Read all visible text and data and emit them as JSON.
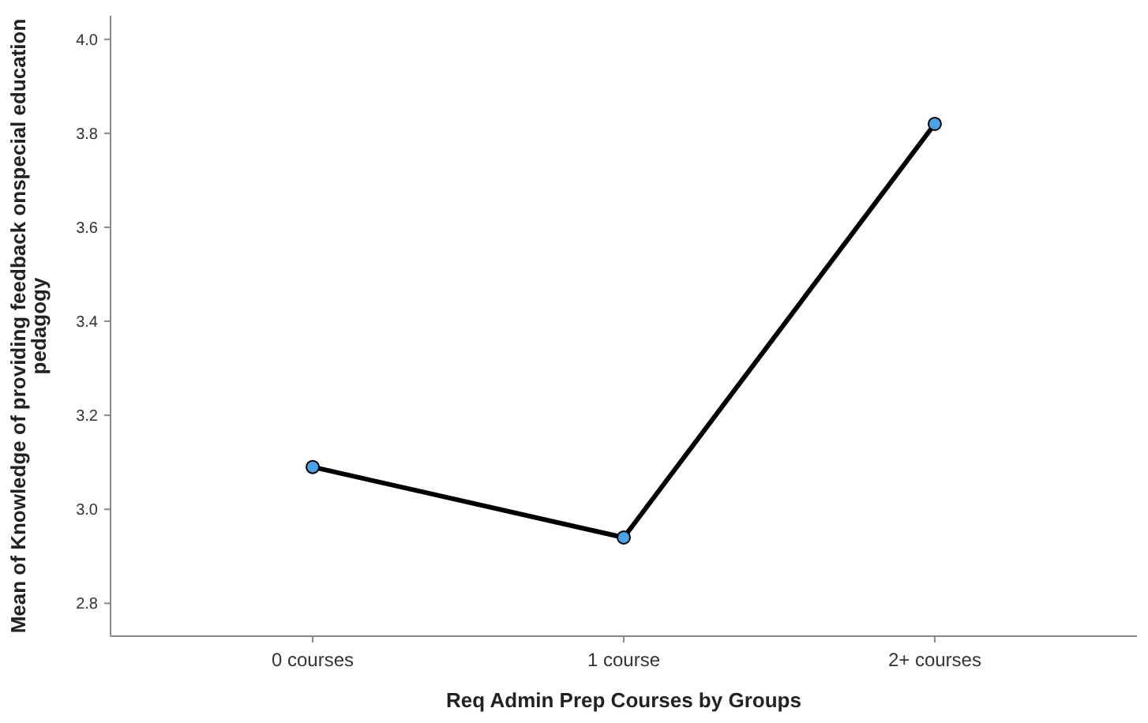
{
  "chart_data": {
    "type": "line",
    "xlabel": "Req Admin Prep Courses by Groups",
    "ylabel": "Mean of Knowledge of providing feedback onspecial education pedagogy",
    "categories": [
      "0 courses",
      "1 course",
      "2+ courses"
    ],
    "series": [
      {
        "color": "#000000",
        "values": [
          3.09,
          2.94,
          3.82
        ]
      }
    ],
    "ylim": [
      2.73,
      4.05
    ],
    "yticks": [
      2.8,
      {
        "value": 3,
        "label": "3.0"
      },
      3.2,
      3.4,
      3.6,
      3.8,
      {
        "value": 4,
        "label": "4.0"
      }
    ],
    "marker": "circle",
    "line_style": "solid"
  }
}
